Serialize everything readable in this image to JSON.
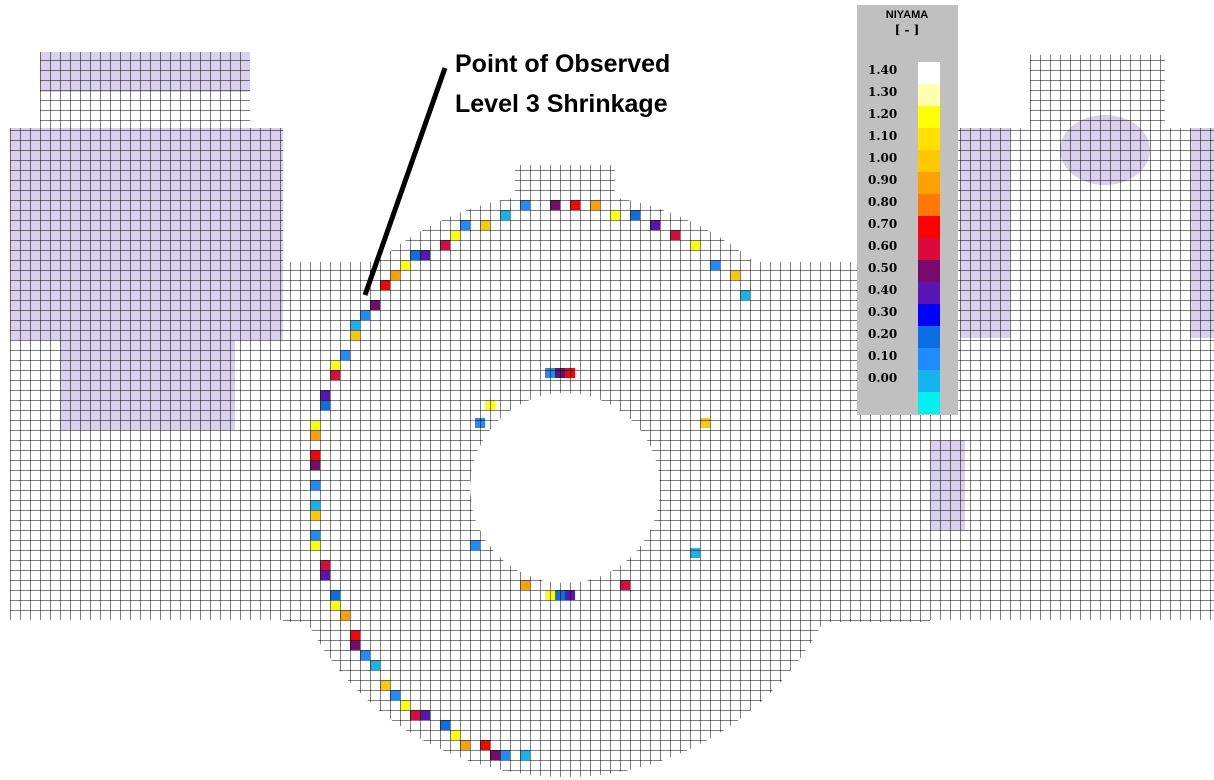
{
  "annotation": {
    "line1": "Point of Observed",
    "line2": "Level 3 Shrinkage"
  },
  "legend": {
    "title": "NIYAMA",
    "unit": "[ - ]",
    "labels": [
      "1.40",
      "1.30",
      "1.20",
      "1.10",
      "1.00",
      "0.90",
      "0.80",
      "0.70",
      "0.60",
      "0.50",
      "0.40",
      "0.30",
      "0.20",
      "0.10",
      "0.00"
    ],
    "colors": [
      "#ffffff",
      "#ffffb0",
      "#ffff00",
      "#ffe000",
      "#ffc800",
      "#ffa000",
      "#ff7800",
      "#ff0000",
      "#dc0a3c",
      "#780a6e",
      "#5a14b4",
      "#0000ff",
      "#0a6ee6",
      "#1e8cff",
      "#14b4f0",
      "#00f0f0"
    ]
  }
}
